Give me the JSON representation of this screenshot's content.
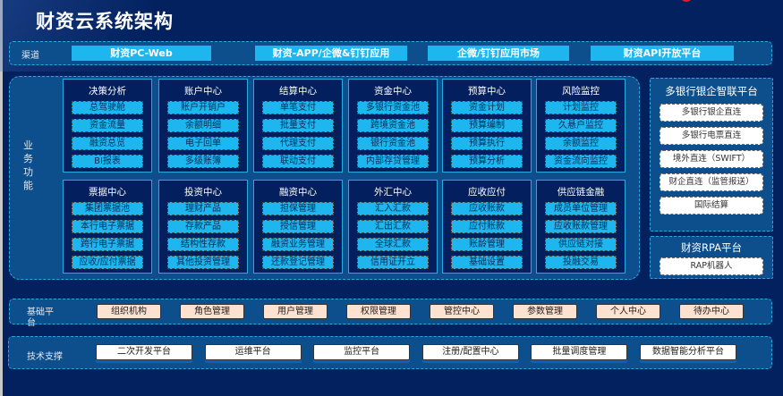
{
  "title": "财资云系统架构",
  "channel": {
    "label": "渠道",
    "items": [
      "财资PC-Web",
      "财资-APP/企微&钉钉应用",
      "企微/钉钉应用市场",
      "财资API开放平台"
    ]
  },
  "business": {
    "label": "业务功能",
    "modules": [
      {
        "name": "决策分析",
        "items": [
          "总驾驶舱",
          "资金流量",
          "融资总览",
          "BI报表"
        ]
      },
      {
        "name": "账户中心",
        "items": [
          "账户开销户",
          "余额明细",
          "电子回单",
          "多级账簿"
        ]
      },
      {
        "name": "结算中心",
        "items": [
          "单笔支付",
          "批量支付",
          "代理支付",
          "联动支付"
        ]
      },
      {
        "name": "资金中心",
        "items": [
          "多银行资金池",
          "跨境资金池",
          "银行资金池",
          "内部存贷管理"
        ]
      },
      {
        "name": "预算中心",
        "items": [
          "资金计划",
          "预算编制",
          "预算执行",
          "预算分析"
        ]
      },
      {
        "name": "风险监控",
        "items": [
          "计划监控",
          "久悬户监控",
          "余额监控",
          "资金流向监控"
        ]
      },
      {
        "name": "票据中心",
        "items": [
          "集团票据池",
          "本行电子票据",
          "跨行电子票据",
          "应收/应付票据"
        ]
      },
      {
        "name": "投资中心",
        "items": [
          "理财产品",
          "存款产品",
          "结构性存款",
          "其他投资管理"
        ]
      },
      {
        "name": "融资中心",
        "items": [
          "担保管理",
          "授信管理",
          "融资业务管理",
          "还款登记管理"
        ]
      },
      {
        "name": "外汇中心",
        "items": [
          "汇入汇款",
          "汇出汇款",
          "全球汇款",
          "信用证开立"
        ]
      },
      {
        "name": "应收应付",
        "items": [
          "应收账款",
          "应付账款",
          "账龄管理",
          "基础设置"
        ]
      },
      {
        "name": "供应链金融",
        "items": [
          "成员单位管理",
          "应收账款管理",
          "供应链对接",
          "投融交易"
        ]
      }
    ]
  },
  "bank_platform": {
    "title": "多银行银企智联平台",
    "items": [
      "多银行银企直连",
      "多银行电票直连",
      "境外直连（SWIFT）",
      "财企直连（监管报送）",
      "国际结算"
    ]
  },
  "rpa_platform": {
    "title": "财资RPA平台",
    "items": [
      "RAP机器人"
    ]
  },
  "base_platform": {
    "label": "基础平台",
    "items": [
      "组织机构",
      "角色管理",
      "用户管理",
      "权限管理",
      "管控中心",
      "参数管理",
      "个人中心",
      "待办中心"
    ]
  },
  "tech_support": {
    "label": "技术支撑",
    "items": [
      "二次开发平台",
      "运维平台",
      "监控平台",
      "注册/配置中心",
      "批量调度管理",
      "数据智能分析平台"
    ]
  }
}
